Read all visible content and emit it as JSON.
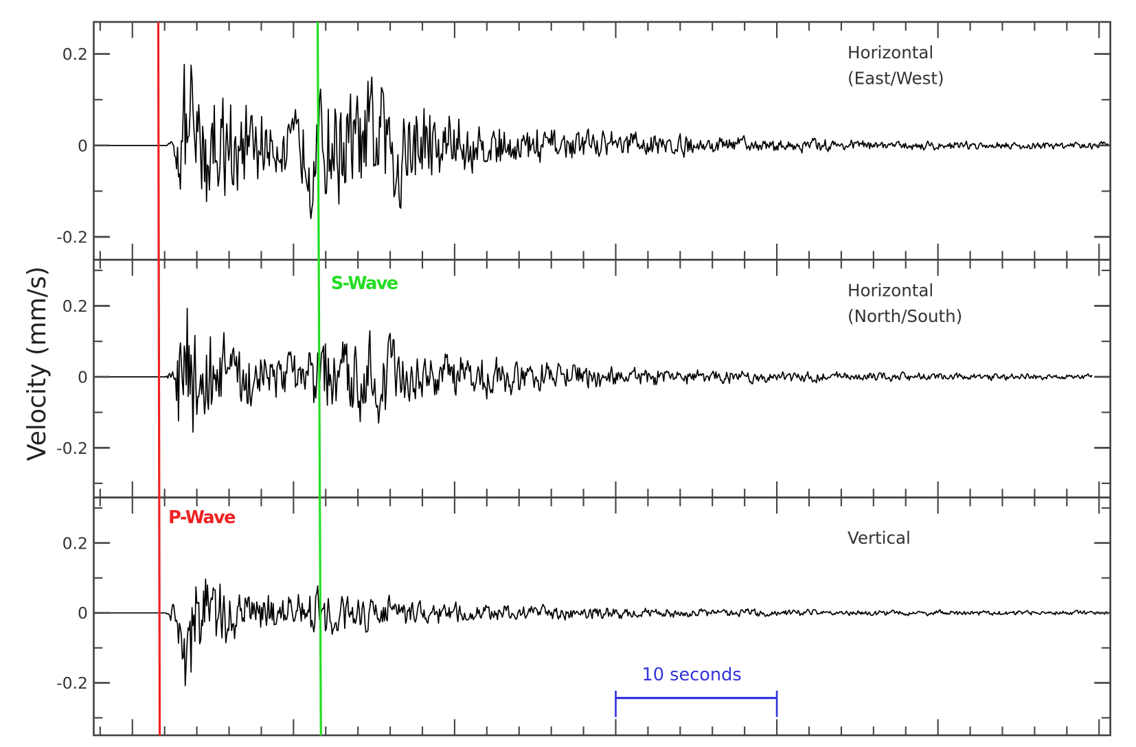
{
  "chart_data": {
    "type": "line",
    "ylabel": "Velocity (mm/s)",
    "xlim": [
      0,
      63.1
    ],
    "x_major_tick_start": 2.4,
    "x_major_tick_step": 10,
    "x_minor_tick_step": 2,
    "grid": false,
    "colors": {
      "trace": "#000000",
      "p_wave": "#ee2222",
      "s_wave": "#22dd22",
      "scale_bar": "#3333dd",
      "axes": "#444444"
    },
    "markers": {
      "p_wave": {
        "label": "P-Wave",
        "x": 4.05
      },
      "s_wave": {
        "label": "S-Wave",
        "x_top": 13.9,
        "x_bottom": 14.1
      }
    },
    "scale_bar": {
      "label": "10 seconds",
      "x_start": 32.4,
      "x_end": 42.4
    },
    "panels": [
      {
        "label_lines": [
          "Horizontal",
          "(East/West)"
        ],
        "ylim": [
          -0.25,
          0.27
        ],
        "yticks_labeled": [
          {
            "v": 0.2,
            "t": "0.2"
          },
          {
            "v": 0,
            "t": "0"
          },
          {
            "v": -0.2,
            "t": "-0.2"
          }
        ],
        "yticks_minor": [
          0.1,
          -0.1
        ],
        "envelope": [
          [
            0,
            0.002
          ],
          [
            4.5,
            0.002
          ],
          [
            5.0,
            0.03
          ],
          [
            5.3,
            0.2
          ],
          [
            5.8,
            0.25
          ],
          [
            7,
            0.2
          ],
          [
            9,
            0.14
          ],
          [
            11,
            0.11
          ],
          [
            12.5,
            0.1
          ],
          [
            13.5,
            0.2
          ],
          [
            15,
            0.24
          ],
          [
            17,
            0.2
          ],
          [
            19,
            0.16
          ],
          [
            21,
            0.13
          ],
          [
            23,
            0.09
          ],
          [
            26,
            0.07
          ],
          [
            30,
            0.05
          ],
          [
            35,
            0.035
          ],
          [
            40,
            0.025
          ],
          [
            45,
            0.02
          ],
          [
            50,
            0.015
          ],
          [
            63,
            0.01
          ]
        ]
      },
      {
        "label_lines": [
          "Horizontal",
          "(North/South)"
        ],
        "ylim": [
          -0.34,
          0.33
        ],
        "yticks_labeled": [
          {
            "v": 0.2,
            "t": "0.2"
          },
          {
            "v": 0,
            "t": "0"
          },
          {
            "v": -0.2,
            "t": "-0.2"
          }
        ],
        "yticks_minor": [
          0.3,
          0.1,
          -0.1,
          -0.3
        ],
        "envelope": [
          [
            0,
            0.002
          ],
          [
            4.5,
            0.002
          ],
          [
            5.0,
            0.05
          ],
          [
            5.3,
            0.25
          ],
          [
            5.8,
            0.31
          ],
          [
            7,
            0.22
          ],
          [
            9,
            0.13
          ],
          [
            11,
            0.09
          ],
          [
            13,
            0.08
          ],
          [
            14,
            0.18
          ],
          [
            16,
            0.2
          ],
          [
            18,
            0.16
          ],
          [
            20,
            0.12
          ],
          [
            23,
            0.09
          ],
          [
            26,
            0.07
          ],
          [
            30,
            0.05
          ],
          [
            35,
            0.035
          ],
          [
            40,
            0.025
          ],
          [
            45,
            0.02
          ],
          [
            50,
            0.016
          ],
          [
            62,
            0.01
          ]
        ]
      },
      {
        "label_lines": [
          "Vertical"
        ],
        "ylim": [
          -0.35,
          0.33
        ],
        "yticks_labeled": [
          {
            "v": 0.2,
            "t": "0.2"
          },
          {
            "v": 0,
            "t": "0"
          },
          {
            "v": -0.2,
            "t": "-0.2"
          }
        ],
        "yticks_minor": [
          0.3,
          0.1,
          -0.1,
          -0.3
        ],
        "envelope": [
          [
            0,
            0.002
          ],
          [
            4.5,
            0.002
          ],
          [
            5.0,
            0.05
          ],
          [
            5.3,
            0.25
          ],
          [
            5.8,
            0.3
          ],
          [
            7,
            0.18
          ],
          [
            9,
            0.1
          ],
          [
            11,
            0.08
          ],
          [
            13,
            0.08
          ],
          [
            14,
            0.1
          ],
          [
            16,
            0.09
          ],
          [
            18,
            0.07
          ],
          [
            21,
            0.05
          ],
          [
            25,
            0.035
          ],
          [
            30,
            0.025
          ],
          [
            35,
            0.02
          ],
          [
            40,
            0.015
          ],
          [
            50,
            0.01
          ],
          [
            63,
            0.008
          ]
        ]
      }
    ]
  }
}
